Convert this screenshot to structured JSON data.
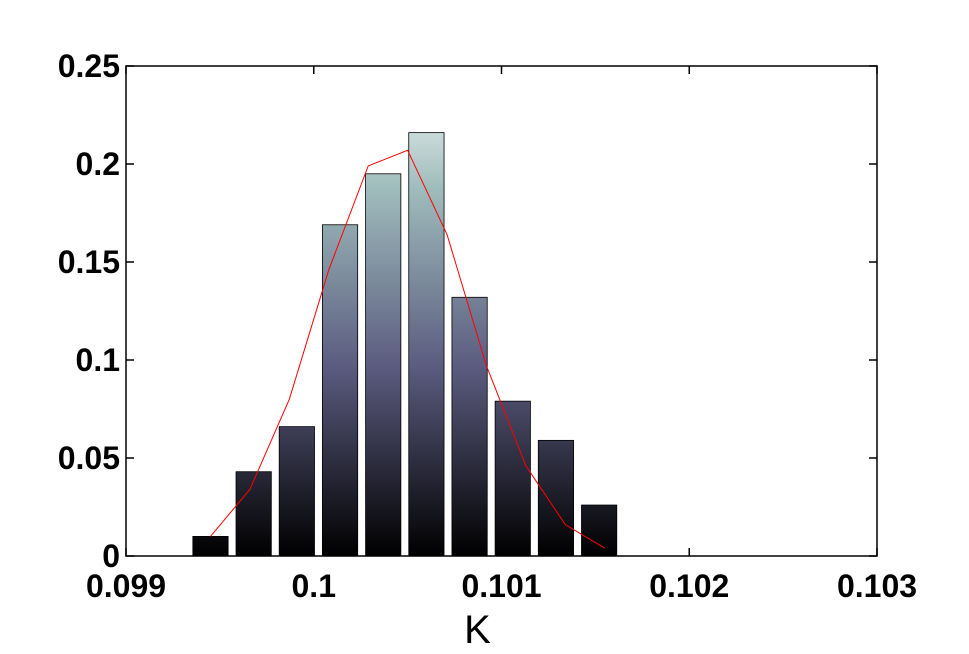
{
  "chart_data": {
    "type": "bar",
    "xlabel": "K",
    "ylabel": "",
    "title": "",
    "xlim": [
      0.099,
      0.103
    ],
    "ylim": [
      0,
      0.25
    ],
    "xticks": [
      0.099,
      0.1,
      0.101,
      0.102,
      0.103
    ],
    "xtick_labels": [
      "0.099",
      "0.1",
      "0.101",
      "0.102",
      "0.103"
    ],
    "yticks": [
      0,
      0.05,
      0.1,
      0.15,
      0.2,
      0.25
    ],
    "ytick_labels": [
      "0",
      "0.05",
      "0.1",
      "0.15",
      "0.2",
      "0.25"
    ],
    "grid": false,
    "bars": {
      "x": [
        0.09945,
        0.09968,
        0.09991,
        0.10014,
        0.10037,
        0.1006,
        0.10083,
        0.10106,
        0.10129,
        0.10152
      ],
      "values": [
        0.01,
        0.043,
        0.066,
        0.169,
        0.195,
        0.216,
        0.132,
        0.079,
        0.059,
        0.026
      ],
      "width": 0.000188
    },
    "fit_line": {
      "x": [
        0.09945,
        0.09966,
        0.09987,
        0.10008,
        0.10029,
        0.1005,
        0.10071,
        0.10092,
        0.10113,
        0.10134,
        0.10155
      ],
      "y": [
        0.01,
        0.034,
        0.08,
        0.146,
        0.199,
        0.207,
        0.164,
        0.097,
        0.046,
        0.016,
        0.004
      ]
    },
    "colors": {
      "bar_top": "#ffffff",
      "bar_mid_upper": "#9fbcbc",
      "bar_mid_lower": "#5a5a7e",
      "bar_bottom": "#000000",
      "bar_edge": "#000000",
      "fit_line": "#ff0000",
      "axes": "#000000"
    }
  }
}
